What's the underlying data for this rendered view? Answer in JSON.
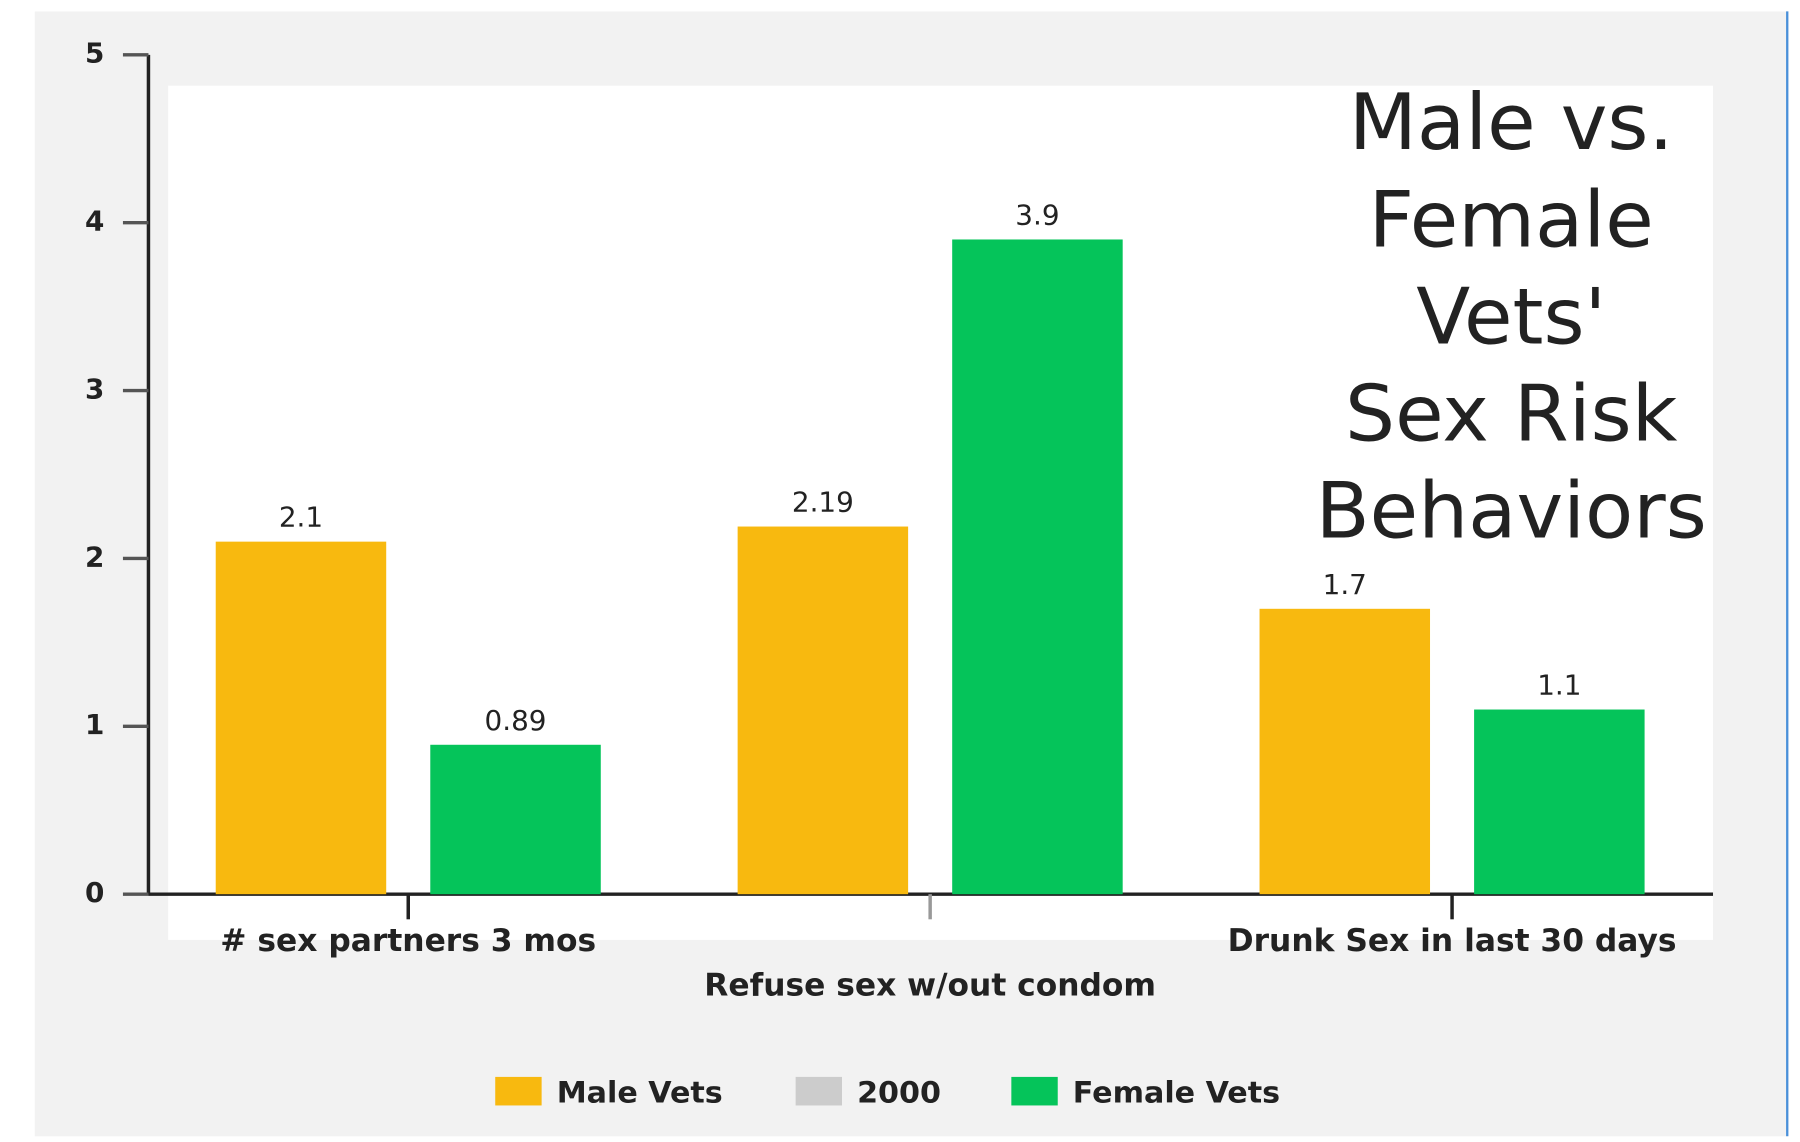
{
  "chart_data": {
    "type": "bar",
    "title": [
      "Male vs.",
      "Female",
      "Vets'",
      "Sex Risk",
      "Behaviors"
    ],
    "categories": [
      "# sex partners 3 mos",
      "Refuse sex w/out condom",
      "Drunk Sex in last 30 days"
    ],
    "series": [
      {
        "name": "Male Vets",
        "color": "#f8b90f",
        "values": [
          2.1,
          2.19,
          1.7
        ]
      },
      {
        "name": "2000",
        "color": "#cccccc",
        "values": [
          null,
          null,
          null
        ]
      },
      {
        "name": "Female Vets",
        "color": "#05c45a",
        "values": [
          0.89,
          3.9,
          1.1
        ]
      }
    ],
    "ylim": [
      0,
      5
    ],
    "yticks": [
      0,
      1,
      2,
      3,
      4,
      5
    ],
    "legend": "bottom"
  }
}
